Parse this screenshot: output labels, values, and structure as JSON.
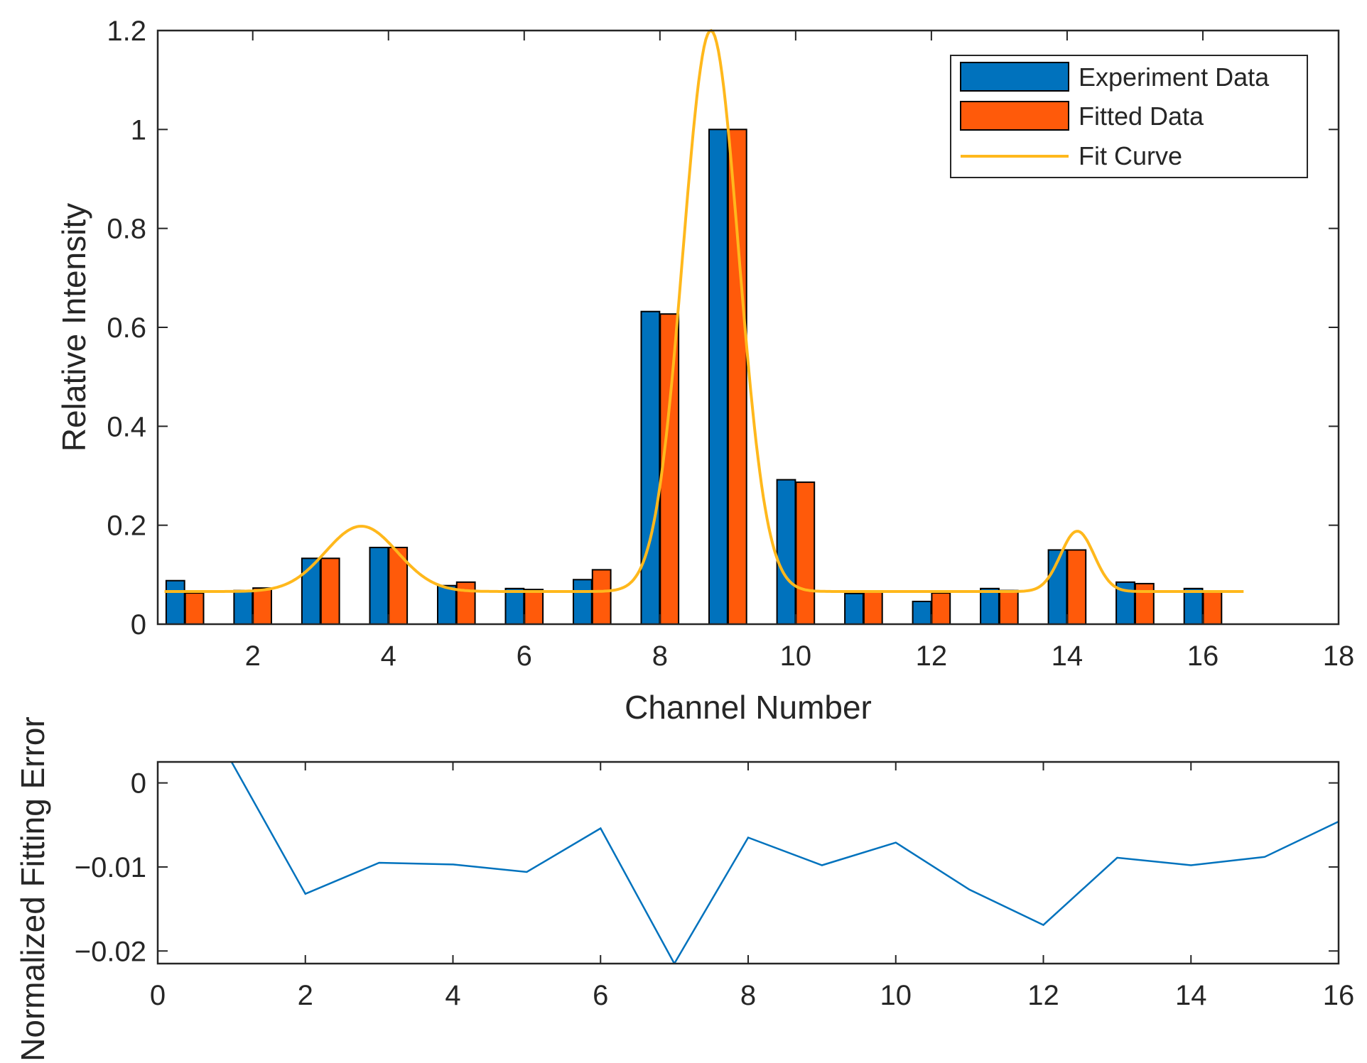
{
  "chart_data": [
    {
      "type": "bar",
      "name": "intensity-chart",
      "xlabel": "Channel Number",
      "ylabel": "Relative Intensity",
      "xlim": [
        0.6,
        18
      ],
      "ylim": [
        0,
        1.2
      ],
      "xticks": [
        2,
        4,
        6,
        8,
        10,
        12,
        14,
        16,
        18
      ],
      "xtick_labels": [
        "2",
        "4",
        "6",
        "8",
        "10",
        "12",
        "14",
        "16",
        "18"
      ],
      "yticks": [
        0,
        0.2,
        0.4,
        0.6,
        0.8,
        1,
        1.2
      ],
      "ytick_labels": [
        "0",
        "0.2",
        "0.4",
        "0.6",
        "0.8",
        "1",
        "1.2"
      ],
      "categories": [
        1,
        2,
        3,
        4,
        5,
        6,
        7,
        8,
        9,
        10,
        11,
        12,
        13,
        14,
        15,
        16
      ],
      "series": [
        {
          "name": "Experiment Data",
          "color": "#0072BD",
          "values": [
            0.088,
            0.068,
            0.133,
            0.155,
            0.078,
            0.072,
            0.09,
            0.632,
            1.0,
            0.292,
            0.062,
            0.046,
            0.072,
            0.15,
            0.085,
            0.072
          ]
        },
        {
          "name": "Fitted Data",
          "color": "#FF5A0A",
          "values": [
            0.063,
            0.073,
            0.133,
            0.155,
            0.085,
            0.07,
            0.11,
            0.627,
            1.0,
            0.287,
            0.066,
            0.063,
            0.068,
            0.15,
            0.082,
            0.066
          ]
        }
      ],
      "fit_curve": {
        "name": "Fit Curve",
        "color": "#FFB81C",
        "x_range": [
          0.7,
          16.6
        ],
        "baseline": 0.066,
        "peaks": [
          {
            "center": 3.6,
            "height": 0.132,
            "width": 0.75
          },
          {
            "center": 8.75,
            "height": 1.134,
            "width": 0.58
          },
          {
            "center": 14.15,
            "height": 0.122,
            "width": 0.35
          }
        ]
      },
      "legend": {
        "position": "top-right",
        "entries": [
          "Experiment Data",
          "Fitted Data",
          "Fit Curve"
        ]
      }
    },
    {
      "type": "line",
      "name": "error-chart",
      "xlabel": "",
      "ylabel": "Normalized Fitting Error",
      "xlim": [
        0,
        16
      ],
      "ylim": [
        -0.0215,
        0.0025
      ],
      "xticks": [
        0,
        2,
        4,
        6,
        8,
        10,
        12,
        14,
        16
      ],
      "xtick_labels": [
        "0",
        "2",
        "4",
        "6",
        "8",
        "10",
        "12",
        "14",
        "16"
      ],
      "yticks": [
        0,
        -0.01,
        -0.02
      ],
      "ytick_labels": [
        "0",
        "−0.01",
        "−0.02"
      ],
      "series": [
        {
          "name": "Normalized Fitting Error",
          "color": "#0072BD",
          "x": [
            1,
            2,
            3,
            4,
            5,
            6,
            7,
            8,
            9,
            10,
            11,
            12,
            13,
            14,
            15,
            16
          ],
          "values": [
            0.0025,
            -0.0132,
            -0.0095,
            -0.0097,
            -0.0106,
            -0.0054,
            -0.0215,
            -0.0065,
            -0.0098,
            -0.0071,
            -0.0127,
            -0.0169,
            -0.0089,
            -0.0098,
            -0.0088,
            -0.0046
          ]
        }
      ]
    }
  ]
}
